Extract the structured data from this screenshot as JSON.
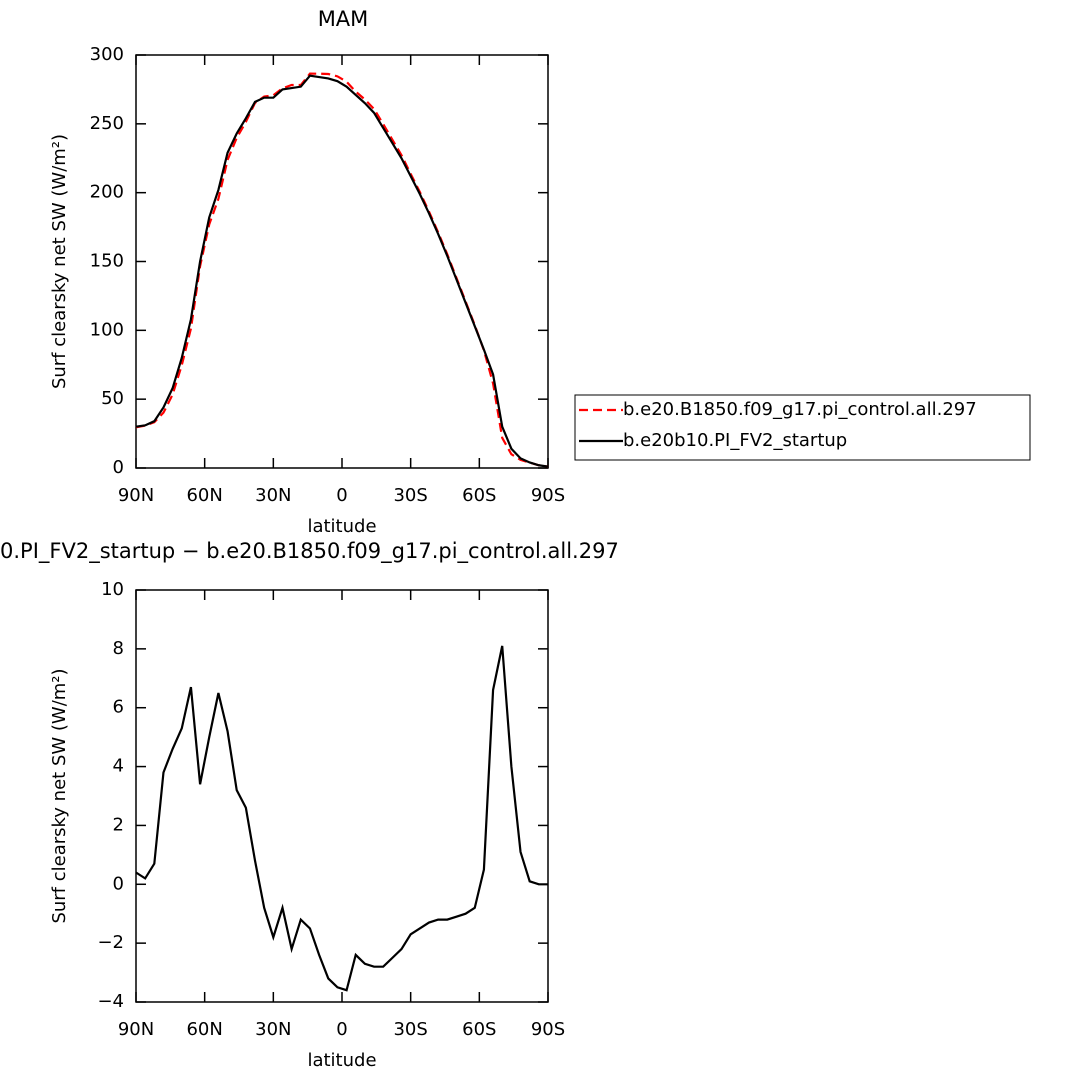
{
  "chart_data": [
    {
      "type": "line",
      "title": "MAM",
      "xlabel": "latitude",
      "ylabel": "Surf clearsky net SW (W/m²)",
      "x": [
        90,
        86,
        82,
        78,
        74,
        70,
        66,
        62,
        58,
        54,
        50,
        46,
        42,
        38,
        34,
        30,
        26,
        22,
        18,
        14,
        10,
        6,
        2,
        -2,
        -6,
        -10,
        -14,
        -18,
        -22,
        -26,
        -30,
        -34,
        -38,
        -42,
        -46,
        -50,
        -54,
        -58,
        -62,
        -66,
        -70,
        -74,
        -78,
        -82,
        -86,
        -90
      ],
      "xlim": [
        90,
        -90
      ],
      "xticks": [
        {
          "value": 90,
          "label": "90N"
        },
        {
          "value": 60,
          "label": "60N"
        },
        {
          "value": 30,
          "label": "30N"
        },
        0,
        {
          "value": -30,
          "label": "30S"
        },
        {
          "value": -60,
          "label": "60S"
        },
        {
          "value": -90,
          "label": "90S"
        }
      ],
      "ylim": [
        0,
        300
      ],
      "yticks": [
        0,
        50,
        100,
        150,
        200,
        250,
        300
      ],
      "legend": "right",
      "series": [
        {
          "name": "b.e20.B1850.f09_g17.pi_control.all.297",
          "color": "#ff0000",
          "dashed": true,
          "values": [
            29.6,
            30.8,
            33.3,
            40.2,
            53.4,
            74.7,
            101.3,
            146.6,
            177,
            195.5,
            223.8,
            239.8,
            251.4,
            265.2,
            269.8,
            270.8,
            275.8,
            278.2,
            278.2,
            286.5,
            286.4,
            286.2,
            284.5,
            280.6,
            273.4,
            267.7,
            260.8,
            249.8,
            238.5,
            227.2,
            213.7,
            200.5,
            186.3,
            171.2,
            155.2,
            138.1,
            121,
            103.8,
            85.5,
            61.4,
            21.9,
            10,
            5.9,
            3.9,
            2,
            1
          ]
        },
        {
          "name": "b.e20b10.PI_FV2_startup",
          "color": "#000000",
          "dashed": false,
          "values": [
            30,
            31,
            34,
            44,
            58,
            80,
            108,
            150,
            182,
            202,
            229,
            243,
            254,
            266,
            269,
            269,
            275,
            276,
            277,
            285,
            284,
            283,
            281,
            277,
            271,
            265,
            258,
            247,
            236,
            225,
            212,
            199,
            185,
            170,
            154,
            137,
            120,
            103,
            86,
            68,
            30,
            14,
            7,
            4,
            2,
            1
          ]
        }
      ]
    },
    {
      "type": "line",
      "title": "0.PI_FV2_startup − b.e20.B1850.f09_g17.pi_control.all.297",
      "xlabel": "latitude",
      "ylabel": "Surf clearsky net SW (W/m²)",
      "x": [
        90,
        86,
        82,
        78,
        74,
        70,
        66,
        62,
        58,
        54,
        50,
        46,
        42,
        38,
        34,
        30,
        26,
        22,
        18,
        14,
        10,
        6,
        2,
        -2,
        -6,
        -10,
        -14,
        -18,
        -22,
        -26,
        -30,
        -34,
        -38,
        -42,
        -46,
        -50,
        -54,
        -58,
        -62,
        -66,
        -70,
        -74,
        -78,
        -82,
        -86,
        -90
      ],
      "xlim": [
        90,
        -90
      ],
      "xticks": [
        {
          "value": 90,
          "label": "90N"
        },
        {
          "value": 60,
          "label": "60N"
        },
        {
          "value": 30,
          "label": "30N"
        },
        0,
        {
          "value": -30,
          "label": "30S"
        },
        {
          "value": -60,
          "label": "60S"
        },
        {
          "value": -90,
          "label": "90S"
        }
      ],
      "ylim": [
        -4,
        10
      ],
      "yticks": [
        {
          "value": -4,
          "label": "−4"
        },
        {
          "value": -2,
          "label": "−2"
        },
        0,
        2,
        4,
        6,
        8,
        10
      ],
      "series": [
        {
          "color": "#000000",
          "dashed": false,
          "values": [
            0.4,
            0.2,
            0.7,
            3.8,
            4.6,
            5.3,
            6.7,
            3.4,
            5.0,
            6.5,
            5.2,
            3.2,
            2.6,
            0.8,
            -0.8,
            -1.8,
            -0.8,
            -2.2,
            -1.2,
            -1.5,
            -2.4,
            -3.2,
            -3.5,
            -3.6,
            -2.4,
            -2.7,
            -2.8,
            -2.8,
            -2.5,
            -2.2,
            -1.7,
            -1.5,
            -1.3,
            -1.2,
            -1.2,
            -1.1,
            -1.0,
            -0.8,
            0.5,
            6.6,
            8.1,
            4.0,
            1.1,
            0.1,
            0,
            0
          ]
        }
      ]
    }
  ]
}
